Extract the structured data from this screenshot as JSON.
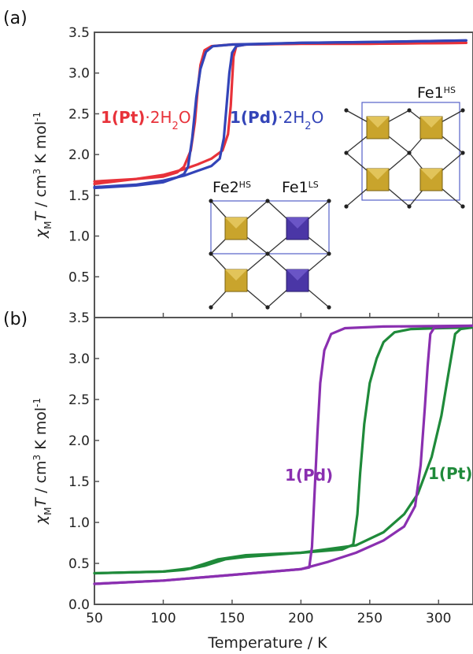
{
  "chart_data": [
    {
      "panel_label": "(a)",
      "type": "line",
      "xlim": [
        50,
        325
      ],
      "ylim": [
        0.0,
        3.5
      ],
      "ylabel": "χMT / cm3 K mol-1",
      "yticks": [
        "0.5",
        "1.0",
        "1.5",
        "2.0",
        "2.5",
        "3.0",
        "3.5"
      ],
      "series": [
        {
          "name": "1(Pt)·2H2O",
          "color": "#e8323a",
          "branches": [
            {
              "dir": "cooling",
              "points": [
                [
                  50,
                  1.67
                ],
                [
                  80,
                  1.7
                ],
                [
                  100,
                  1.73
                ],
                [
                  110,
                  1.78
                ],
                [
                  115,
                  1.85
                ],
                [
                  120,
                  2.05
                ],
                [
                  123,
                  2.4
                ],
                [
                  125,
                  2.8
                ],
                [
                  127,
                  3.1
                ],
                [
                  130,
                  3.28
                ],
                [
                  135,
                  3.33
                ],
                [
                  150,
                  3.35
                ],
                [
                  200,
                  3.36
                ],
                [
                  250,
                  3.36
                ],
                [
                  320,
                  3.37
                ]
              ]
            },
            {
              "dir": "heating",
              "points": [
                [
                  50,
                  1.64
                ],
                [
                  80,
                  1.7
                ],
                [
                  100,
                  1.75
                ],
                [
                  115,
                  1.82
                ],
                [
                  125,
                  1.88
                ],
                [
                  135,
                  1.95
                ],
                [
                  143,
                  2.05
                ],
                [
                  147,
                  2.25
                ],
                [
                  149,
                  2.6
                ],
                [
                  150,
                  2.9
                ],
                [
                  151,
                  3.2
                ],
                [
                  153,
                  3.33
                ],
                [
                  160,
                  3.35
                ],
                [
                  200,
                  3.36
                ],
                [
                  250,
                  3.36
                ],
                [
                  320,
                  3.37
                ]
              ]
            }
          ]
        },
        {
          "name": "1(Pd)·2H2O",
          "color": "#3344b8",
          "branches": [
            {
              "dir": "cooling",
              "points": [
                [
                  50,
                  1.59
                ],
                [
                  80,
                  1.62
                ],
                [
                  100,
                  1.66
                ],
                [
                  110,
                  1.72
                ],
                [
                  115,
                  1.76
                ],
                [
                  118,
                  1.85
                ],
                [
                  121,
                  2.2
                ],
                [
                  124,
                  2.7
                ],
                [
                  127,
                  3.05
                ],
                [
                  131,
                  3.26
                ],
                [
                  136,
                  3.33
                ],
                [
                  150,
                  3.35
                ],
                [
                  200,
                  3.37
                ],
                [
                  250,
                  3.38
                ],
                [
                  320,
                  3.4
                ]
              ]
            },
            {
              "dir": "heating",
              "points": [
                [
                  50,
                  1.6
                ],
                [
                  80,
                  1.63
                ],
                [
                  100,
                  1.68
                ],
                [
                  115,
                  1.74
                ],
                [
                  125,
                  1.8
                ],
                [
                  135,
                  1.86
                ],
                [
                  141,
                  1.95
                ],
                [
                  144,
                  2.2
                ],
                [
                  146,
                  2.6
                ],
                [
                  148,
                  3.0
                ],
                [
                  150,
                  3.25
                ],
                [
                  153,
                  3.33
                ],
                [
                  160,
                  3.35
                ],
                [
                  200,
                  3.37
                ],
                [
                  250,
                  3.38
                ],
                [
                  320,
                  3.4
                ]
              ]
            }
          ]
        }
      ],
      "series_labels": [
        {
          "text_parts": [
            "1(Pt)",
            "·2H",
            "2",
            "O"
          ],
          "color": "#e8323a"
        },
        {
          "text_parts": [
            "1(Pd)",
            "·2H",
            "2",
            "O"
          ],
          "color": "#3344b8"
        }
      ],
      "inset_labels": {
        "fe1_hs": {
          "base": "Fe1",
          "sup": "HS"
        },
        "fe2_hs": {
          "base": "Fe2",
          "sup": "HS"
        },
        "fe1_ls": {
          "base": "Fe1",
          "sup": "LS"
        }
      },
      "inset_colors": {
        "hs_site": "#c9a42c",
        "ls_site": "#4a36a6",
        "frame": "#5560c8"
      }
    },
    {
      "panel_label": "(b)",
      "type": "line",
      "xlim": [
        50,
        325
      ],
      "ylim": [
        0.0,
        3.5
      ],
      "xlabel": "Temperature / K",
      "ylabel": "χMT / cm3 K mol-1",
      "xticks": [
        "50",
        "100",
        "150",
        "200",
        "250",
        "300"
      ],
      "yticks": [
        "0.0",
        "0.5",
        "1.0",
        "1.5",
        "2.0",
        "2.5",
        "3.0",
        "3.5"
      ],
      "series": [
        {
          "name": "1(Pt)",
          "color": "#1f8a3a",
          "branches": [
            {
              "dir": "cooling",
              "points": [
                [
                  50,
                  0.38
                ],
                [
                  100,
                  0.4
                ],
                [
                  120,
                  0.44
                ],
                [
                  140,
                  0.55
                ],
                [
                  160,
                  0.6
                ],
                [
                  200,
                  0.63
                ],
                [
                  230,
                  0.67
                ],
                [
                  238,
                  0.73
                ],
                [
                  241,
                  1.1
                ],
                [
                  243,
                  1.6
                ],
                [
                  246,
                  2.2
                ],
                [
                  250,
                  2.7
                ],
                [
                  255,
                  3.0
                ],
                [
                  260,
                  3.2
                ],
                [
                  268,
                  3.32
                ],
                [
                  280,
                  3.36
                ],
                [
                  300,
                  3.37
                ],
                [
                  325,
                  3.38
                ]
              ]
            },
            {
              "dir": "heating",
              "points": [
                [
                  50,
                  0.38
                ],
                [
                  100,
                  0.4
                ],
                [
                  115,
                  0.42
                ],
                [
                  130,
                  0.47
                ],
                [
                  145,
                  0.55
                ],
                [
                  160,
                  0.58
                ],
                [
                  200,
                  0.63
                ],
                [
                  240,
                  0.72
                ],
                [
                  260,
                  0.88
                ],
                [
                  275,
                  1.1
                ],
                [
                  285,
                  1.35
                ],
                [
                  295,
                  1.8
                ],
                [
                  302,
                  2.3
                ],
                [
                  307,
                  2.8
                ],
                [
                  310,
                  3.1
                ],
                [
                  312,
                  3.3
                ],
                [
                  316,
                  3.36
                ],
                [
                  325,
                  3.38
                ]
              ]
            }
          ]
        },
        {
          "name": "1(Pd)",
          "color": "#8a2fb0",
          "branches": [
            {
              "dir": "cooling",
              "points": [
                [
                  50,
                  0.25
                ],
                [
                  100,
                  0.29
                ],
                [
                  150,
                  0.36
                ],
                [
                  200,
                  0.43
                ],
                [
                  206,
                  0.45
                ],
                [
                  208,
                  0.7
                ],
                [
                  210,
                  1.4
                ],
                [
                  212,
                  2.1
                ],
                [
                  214,
                  2.7
                ],
                [
                  217,
                  3.1
                ],
                [
                  222,
                  3.3
                ],
                [
                  232,
                  3.37
                ],
                [
                  260,
                  3.39
                ],
                [
                  325,
                  3.4
                ]
              ]
            },
            {
              "dir": "heating",
              "points": [
                [
                  50,
                  0.25
                ],
                [
                  100,
                  0.29
                ],
                [
                  150,
                  0.36
                ],
                [
                  200,
                  0.43
                ],
                [
                  220,
                  0.52
                ],
                [
                  240,
                  0.63
                ],
                [
                  260,
                  0.78
                ],
                [
                  275,
                  0.95
                ],
                [
                  283,
                  1.2
                ],
                [
                  287,
                  1.7
                ],
                [
                  290,
                  2.4
                ],
                [
                  292,
                  2.9
                ],
                [
                  294,
                  3.3
                ],
                [
                  297,
                  3.38
                ],
                [
                  325,
                  3.4
                ]
              ]
            }
          ]
        }
      ],
      "series_labels": [
        {
          "text": "1(Pd)",
          "color": "#8a2fb0"
        },
        {
          "text": "1(Pt)",
          "color": "#1f8a3a"
        }
      ]
    }
  ]
}
